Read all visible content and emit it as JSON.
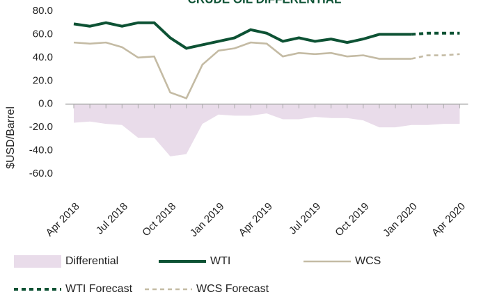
{
  "chart_data": {
    "type": "line",
    "title": "CRUDE OIL DIFFERENTIAL",
    "y_label": "$USD/Barrel",
    "categories": [
      "Apr 2018",
      null,
      null,
      "Jul 2018",
      null,
      null,
      "Oct 2018",
      null,
      null,
      "Jan 2019",
      null,
      null,
      "Apr 2019",
      null,
      null,
      "Jul 2019",
      null,
      null,
      "Oct 2019",
      null,
      null,
      "Jan 2020",
      null,
      null,
      "Apr 2020"
    ],
    "ylim": [
      -60,
      80
    ],
    "yticks": [
      {
        "value": -60,
        "label": "-60.0"
      },
      {
        "value": -40,
        "label": "-40.0"
      },
      {
        "value": -20,
        "label": "-20.0"
      },
      {
        "value": 0,
        "label": "0.0"
      },
      {
        "value": 20,
        "label": "20.0"
      },
      {
        "value": 40,
        "label": "40.0"
      },
      {
        "value": 60,
        "label": "60.0"
      },
      {
        "value": 80,
        "label": "80.0"
      }
    ],
    "legend": "bottom",
    "series": [
      {
        "name": "Differential",
        "style": "area",
        "color": "#e9dcea",
        "values": [
          -16,
          -15,
          -17,
          -18,
          -29,
          -29,
          -45,
          -43,
          -17,
          -9,
          -10,
          -10,
          -8,
          -13,
          -13,
          -11,
          -12,
          -12,
          -14,
          -20,
          -20,
          -18,
          -18,
          -17,
          -17
        ]
      },
      {
        "name": "WTI",
        "style": "solid",
        "color": "#0d5234",
        "values": [
          69,
          67,
          70,
          67,
          70,
          70,
          57,
          48,
          51,
          54,
          57,
          64,
          61,
          54,
          57,
          54,
          56,
          53,
          56,
          60,
          60,
          60,
          null,
          null,
          null
        ]
      },
      {
        "name": "WCS",
        "style": "solid",
        "color": "#c4bba4",
        "values": [
          53,
          52,
          53,
          49,
          40,
          41,
          10,
          5,
          34,
          46,
          48,
          53,
          52,
          41,
          44,
          43,
          44,
          41,
          42,
          39,
          39,
          39,
          null,
          null,
          null
        ]
      },
      {
        "name": "WTI Forecast",
        "style": "dashed",
        "color": "#0d5234",
        "values": [
          null,
          null,
          null,
          null,
          null,
          null,
          null,
          null,
          null,
          null,
          null,
          null,
          null,
          null,
          null,
          null,
          null,
          null,
          null,
          null,
          null,
          60,
          61,
          61,
          61
        ]
      },
      {
        "name": "WCS Forecast",
        "style": "dashed",
        "color": "#c4bba4",
        "values": [
          null,
          null,
          null,
          null,
          null,
          null,
          null,
          null,
          null,
          null,
          null,
          null,
          null,
          null,
          null,
          null,
          null,
          null,
          null,
          null,
          null,
          39,
          42,
          42,
          43
        ]
      }
    ]
  }
}
